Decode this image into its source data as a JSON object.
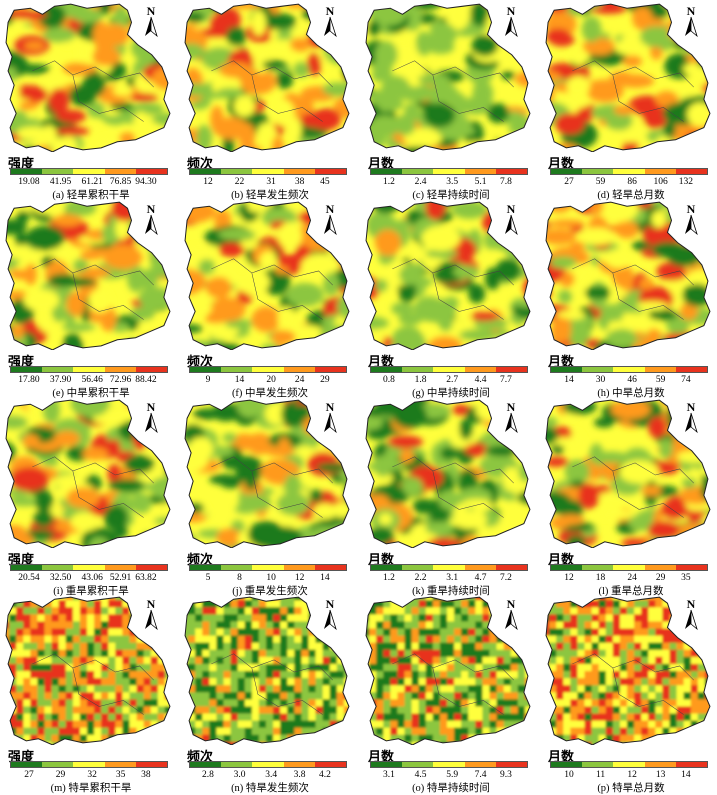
{
  "colors": [
    "#1e7a1e",
    "#8cc63f",
    "#ffff3c",
    "#ff9a1e",
    "#e8331e"
  ],
  "background": "#ffffff",
  "north_label": "N",
  "panels": [
    {
      "id": "a",
      "title": "强度",
      "ticks": [
        "19.08",
        "41.95",
        "61.21",
        "76.85",
        "94.30"
      ],
      "caption": "(a) 轻旱累积干旱",
      "mix": [
        0.18,
        0.24,
        0.26,
        0.2,
        0.12
      ]
    },
    {
      "id": "b",
      "title": "频次",
      "ticks": [
        "12",
        "22",
        "31",
        "38",
        "45"
      ],
      "caption": "(b) 轻旱发生频次",
      "mix": [
        0.14,
        0.18,
        0.24,
        0.24,
        0.2
      ]
    },
    {
      "id": "c",
      "title": "月数",
      "ticks": [
        "1.2",
        "2.4",
        "3.5",
        "5.1",
        "7.8"
      ],
      "caption": "(c) 轻旱持续时间",
      "mix": [
        0.26,
        0.46,
        0.16,
        0.08,
        0.04
      ]
    },
    {
      "id": "d",
      "title": "月数",
      "ticks": [
        "27",
        "59",
        "86",
        "106",
        "132"
      ],
      "caption": "(d) 轻旱总月数",
      "mix": [
        0.16,
        0.2,
        0.24,
        0.22,
        0.18
      ]
    },
    {
      "id": "e",
      "title": "强度",
      "ticks": [
        "17.80",
        "37.90",
        "56.46",
        "72.96",
        "88.42"
      ],
      "caption": "(e) 中旱累积干旱",
      "mix": [
        0.16,
        0.22,
        0.22,
        0.22,
        0.18
      ]
    },
    {
      "id": "f",
      "title": "频次",
      "ticks": [
        "9",
        "14",
        "20",
        "24",
        "29"
      ],
      "caption": "(f) 中旱发生频次",
      "mix": [
        0.2,
        0.22,
        0.2,
        0.22,
        0.16
      ]
    },
    {
      "id": "g",
      "title": "月数",
      "ticks": [
        "0.8",
        "1.8",
        "2.7",
        "4.4",
        "7.7"
      ],
      "caption": "(g) 中旱持续时间",
      "mix": [
        0.18,
        0.48,
        0.18,
        0.1,
        0.06
      ]
    },
    {
      "id": "h",
      "title": "月数",
      "ticks": [
        "14",
        "30",
        "46",
        "59",
        "74"
      ],
      "caption": "(h) 中旱总月数",
      "mix": [
        0.16,
        0.2,
        0.22,
        0.24,
        0.18
      ]
    },
    {
      "id": "i",
      "title": "强度",
      "ticks": [
        "20.54",
        "32.50",
        "43.06",
        "52.91",
        "63.82"
      ],
      "caption": "(i) 重旱累积干旱",
      "mix": [
        0.22,
        0.28,
        0.22,
        0.18,
        0.1
      ]
    },
    {
      "id": "j",
      "title": "频次",
      "ticks": [
        "5",
        "8",
        "10",
        "12",
        "14"
      ],
      "caption": "(j) 重旱发生频次",
      "mix": [
        0.26,
        0.28,
        0.18,
        0.16,
        0.12
      ]
    },
    {
      "id": "k",
      "title": "月数",
      "ticks": [
        "1.2",
        "2.2",
        "3.1",
        "4.7",
        "7.2"
      ],
      "caption": "(k) 重旱持续时间",
      "mix": [
        0.34,
        0.38,
        0.14,
        0.08,
        0.06
      ]
    },
    {
      "id": "l",
      "title": "月数",
      "ticks": [
        "12",
        "18",
        "24",
        "29",
        "35"
      ],
      "caption": "(l) 重旱总月数",
      "mix": [
        0.18,
        0.22,
        0.2,
        0.24,
        0.16
      ]
    },
    {
      "id": "m",
      "title": "强度",
      "ticks": [
        "27",
        "29",
        "32",
        "35",
        "38"
      ],
      "caption": "(m) 特旱累积干旱",
      "mix": [
        0.1,
        0.2,
        0.22,
        0.26,
        0.22
      ]
    },
    {
      "id": "n",
      "title": "频次",
      "ticks": [
        "2.8",
        "3.0",
        "3.4",
        "3.8",
        "4.2"
      ],
      "caption": "(n) 特旱发生频次",
      "mix": [
        0.3,
        0.34,
        0.18,
        0.1,
        0.08
      ]
    },
    {
      "id": "o",
      "title": "月数",
      "ticks": [
        "3.1",
        "4.5",
        "5.9",
        "7.4",
        "9.3"
      ],
      "caption": "(o) 特旱持续时间",
      "mix": [
        0.26,
        0.3,
        0.2,
        0.14,
        0.1
      ]
    },
    {
      "id": "p",
      "title": "月数",
      "ticks": [
        "10",
        "11",
        "12",
        "13",
        "14"
      ],
      "caption": "(p) 特旱总月数",
      "mix": [
        0.1,
        0.18,
        0.24,
        0.26,
        0.22
      ]
    }
  ]
}
